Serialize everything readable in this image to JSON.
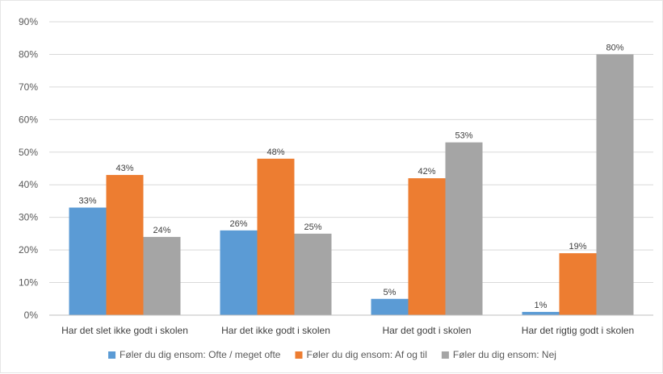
{
  "chart_data": {
    "type": "bar",
    "title": "",
    "xlabel": "",
    "ylabel": "",
    "ylim": [
      0,
      90
    ],
    "yticks": [
      0,
      10,
      20,
      30,
      40,
      50,
      60,
      70,
      80,
      90
    ],
    "ytick_labels": [
      "0%",
      "10%",
      "20%",
      "30%",
      "40%",
      "50%",
      "60%",
      "70%",
      "80%",
      "90%"
    ],
    "grid": true,
    "legend_position": "bottom",
    "categories": [
      "Har det slet ikke godt i skolen",
      "Har det ikke godt i skolen",
      "Har det godt i skolen",
      "Har det rigtig godt i skolen"
    ],
    "series": [
      {
        "name": "Føler du dig ensom: Ofte / meget ofte",
        "color": "#5b9bd5",
        "values": [
          33,
          26,
          5,
          1
        ],
        "labels": [
          "33%",
          "26%",
          "5%",
          "1%"
        ]
      },
      {
        "name": "Føler du dig ensom: Af og til",
        "color": "#ed7d31",
        "values": [
          43,
          48,
          42,
          19
        ],
        "labels": [
          "43%",
          "48%",
          "42%",
          "19%"
        ]
      },
      {
        "name": "Føler du dig ensom: Nej",
        "color": "#a5a5a5",
        "values": [
          24,
          25,
          53,
          80
        ],
        "labels": [
          "24%",
          "25%",
          "53%",
          "80%"
        ]
      }
    ]
  }
}
